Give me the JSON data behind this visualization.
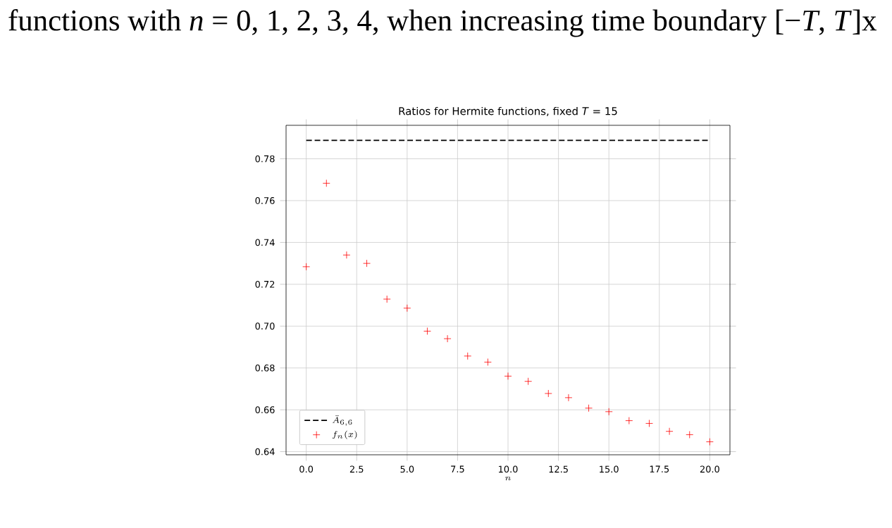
{
  "chart_data": {
    "type": "scatter",
    "title": "Ratios for Hermite functions, fixed *T* = 15",
    "xlabel": "n",
    "annotations": [
      "functions with *n* = 0, 1, 2, 3, 4, when increasing time boundary [−*T*, *T*]x"
    ],
    "x": [
      0,
      1,
      2,
      3,
      4,
      5,
      6,
      7,
      8,
      9,
      10,
      11,
      12,
      13,
      14,
      15,
      16,
      17,
      18,
      19,
      20
    ],
    "series": [
      {
        "name": "\\bar{A}_{6,6}",
        "type": "line",
        "line_style": "dashed",
        "marker": "none",
        "color": "#000000",
        "x": [
          0,
          20
        ],
        "values": [
          0.7888,
          0.7888
        ]
      },
      {
        "name": "f_n(x)",
        "marker": "cross",
        "color": "#ff0000",
        "values": [
          0.7284,
          0.7683,
          0.734,
          0.73,
          0.7129,
          0.7086,
          0.6976,
          0.694,
          0.6857,
          0.6828,
          0.6761,
          0.6736,
          0.6678,
          0.6658,
          0.6608,
          0.6591,
          0.6548,
          0.6535,
          0.6497,
          0.6481,
          0.6447
        ]
      }
    ],
    "xlim": [
      -1,
      21
    ],
    "ylim": [
      0.6385,
      0.796
    ],
    "xticks": [
      {
        "value": 0,
        "label": "0.0"
      },
      {
        "value": 2.5,
        "label": "2.5"
      },
      {
        "value": 5,
        "label": "5.0"
      },
      {
        "value": 7.5,
        "label": "7.5"
      },
      {
        "value": 10,
        "label": "10.0"
      },
      {
        "value": 12.5,
        "label": "12.5"
      },
      {
        "value": 15,
        "label": "15.0"
      },
      {
        "value": 17.5,
        "label": "17.5"
      },
      {
        "value": 20,
        "label": "20.0"
      }
    ],
    "yticks": [
      {
        "value": 0.64,
        "label": "0.64"
      },
      {
        "value": 0.66,
        "label": "0.66"
      },
      {
        "value": 0.68,
        "label": "0.68"
      },
      {
        "value": 0.7,
        "label": "0.70"
      },
      {
        "value": 0.72,
        "label": "0.72"
      },
      {
        "value": 0.74,
        "label": "0.74"
      },
      {
        "value": 0.76,
        "label": "0.76"
      },
      {
        "value": 0.78,
        "label": "0.78"
      }
    ],
    "grid": true,
    "legend": "bottom left"
  }
}
